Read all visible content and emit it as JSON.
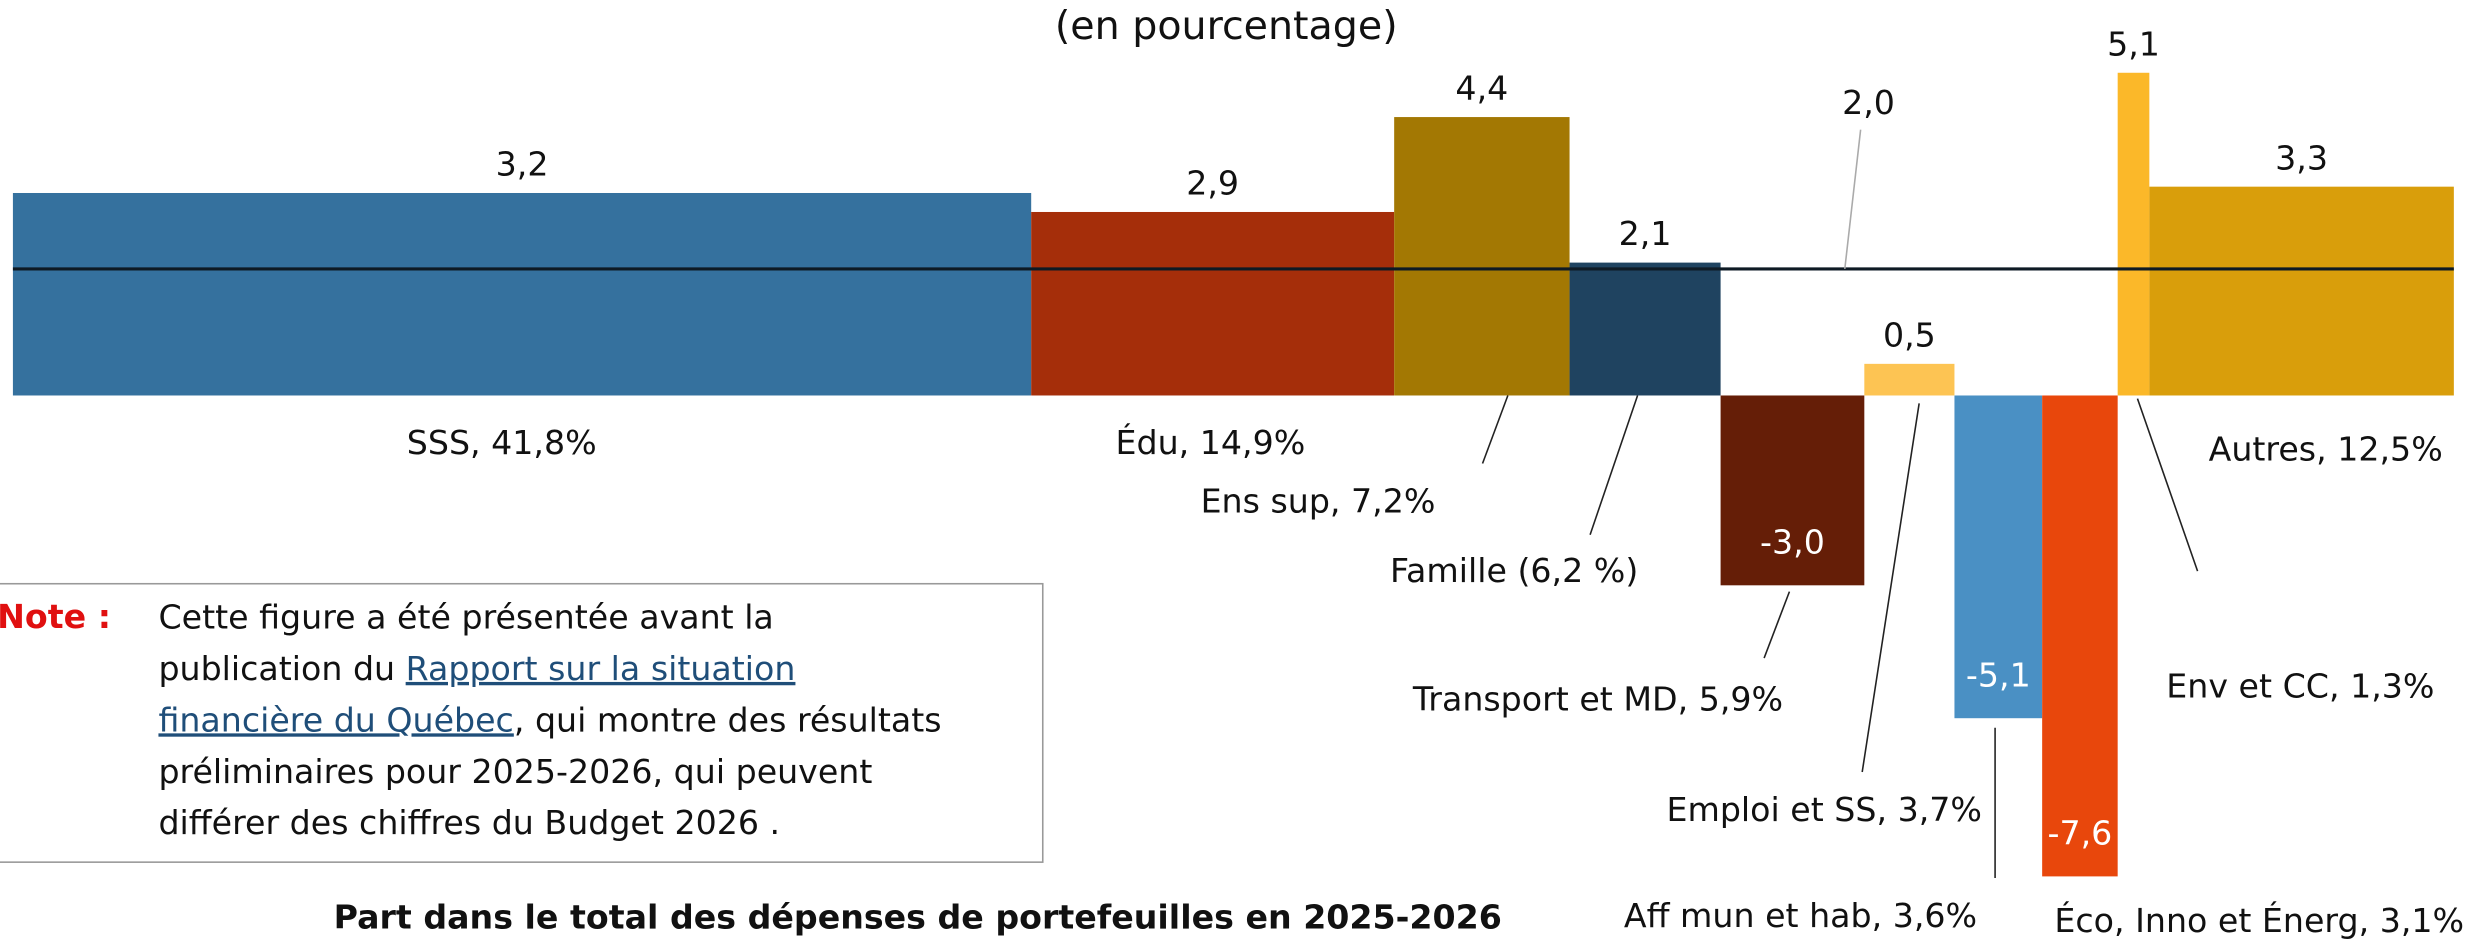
{
  "chart_data": {
    "type": "variwide-bar",
    "title": "(en pourcentage)",
    "x_label": "Part dans le total des dépenses de portefeuilles en 2025-2026",
    "categories": [
      "SSS, 41,8%",
      "Édu, 14,9%",
      "Ens sup, 7,2%",
      "Famille (6,2 %)",
      "Transport et MD, 5,9%",
      "Emploi et SS, 3,7%",
      "Aff mun et hab, 3,6%",
      "Éco, Inno et Énerg, 3,1%",
      "Env et CC, 1,3%",
      "Autres, 12,5%"
    ],
    "shares": [
      41.8,
      14.9,
      7.2,
      6.2,
      5.9,
      3.7,
      3.6,
      3.1,
      1.3,
      12.5
    ],
    "values": [
      3.2,
      2.9,
      4.4,
      2.1,
      -3.0,
      0.5,
      -5.1,
      -7.6,
      5.1,
      3.3
    ],
    "value_labels": [
      "3,2",
      "2,9",
      "4,4",
      "2,1",
      "-3,0",
      "0,5",
      "-5,1",
      "-7,6",
      "5,1",
      "3,3"
    ],
    "colors": [
      "#35719e",
      "#a52e0a",
      "#a37803",
      "#1f4360",
      "#651e07",
      "#fdc453",
      "#4a90c4",
      "#e8470c",
      "#fbb829",
      "#d99e0b"
    ],
    "average": 2.0,
    "average_label": "2,0",
    "note": {
      "label": "Note :",
      "lines": [
        [
          {
            "text": "Cette figure a été présentée avant la"
          }
        ],
        [
          {
            "text": "publication du "
          },
          {
            "text": "Rapport sur la situation",
            "link": true
          }
        ],
        [
          {
            "text": "financière du Québec",
            "link": true
          },
          {
            "text": ", qui montre des résultats"
          }
        ],
        [
          {
            "text": "préliminaires pour 2025-2026, qui peuvent"
          }
        ],
        [
          {
            "text": "différer des chiffres du Budget 2026 ."
          }
        ]
      ]
    }
  }
}
